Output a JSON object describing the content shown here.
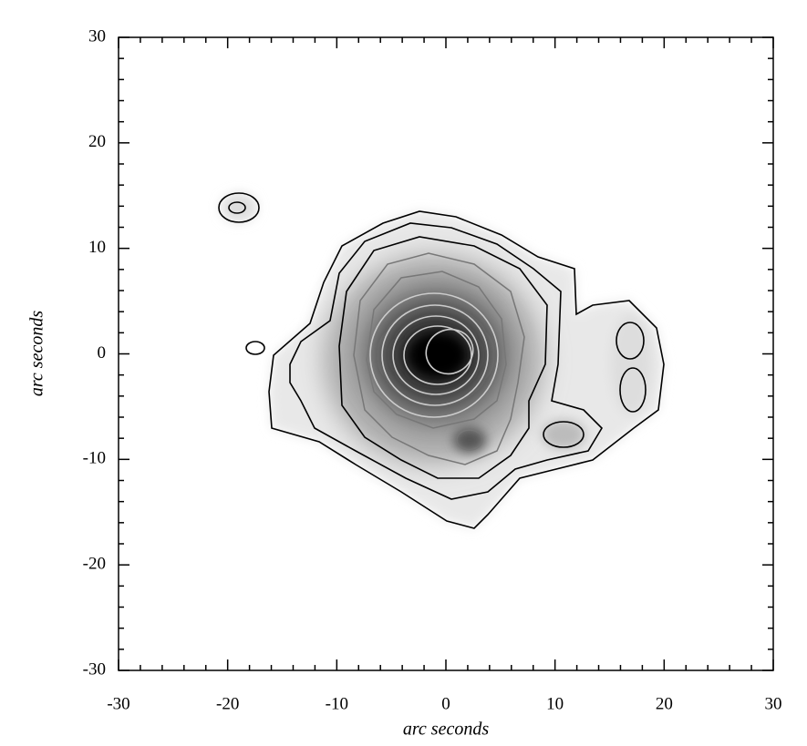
{
  "chart_data": {
    "type": "contour",
    "xlabel": "arc seconds",
    "ylabel": "arc seconds",
    "xlim": [
      -30,
      30
    ],
    "ylim": [
      -30,
      30
    ],
    "xticks": [
      -30,
      -20,
      -10,
      0,
      10,
      20,
      30
    ],
    "yticks": [
      -30,
      -20,
      -10,
      0,
      10,
      20,
      30
    ]
  }
}
